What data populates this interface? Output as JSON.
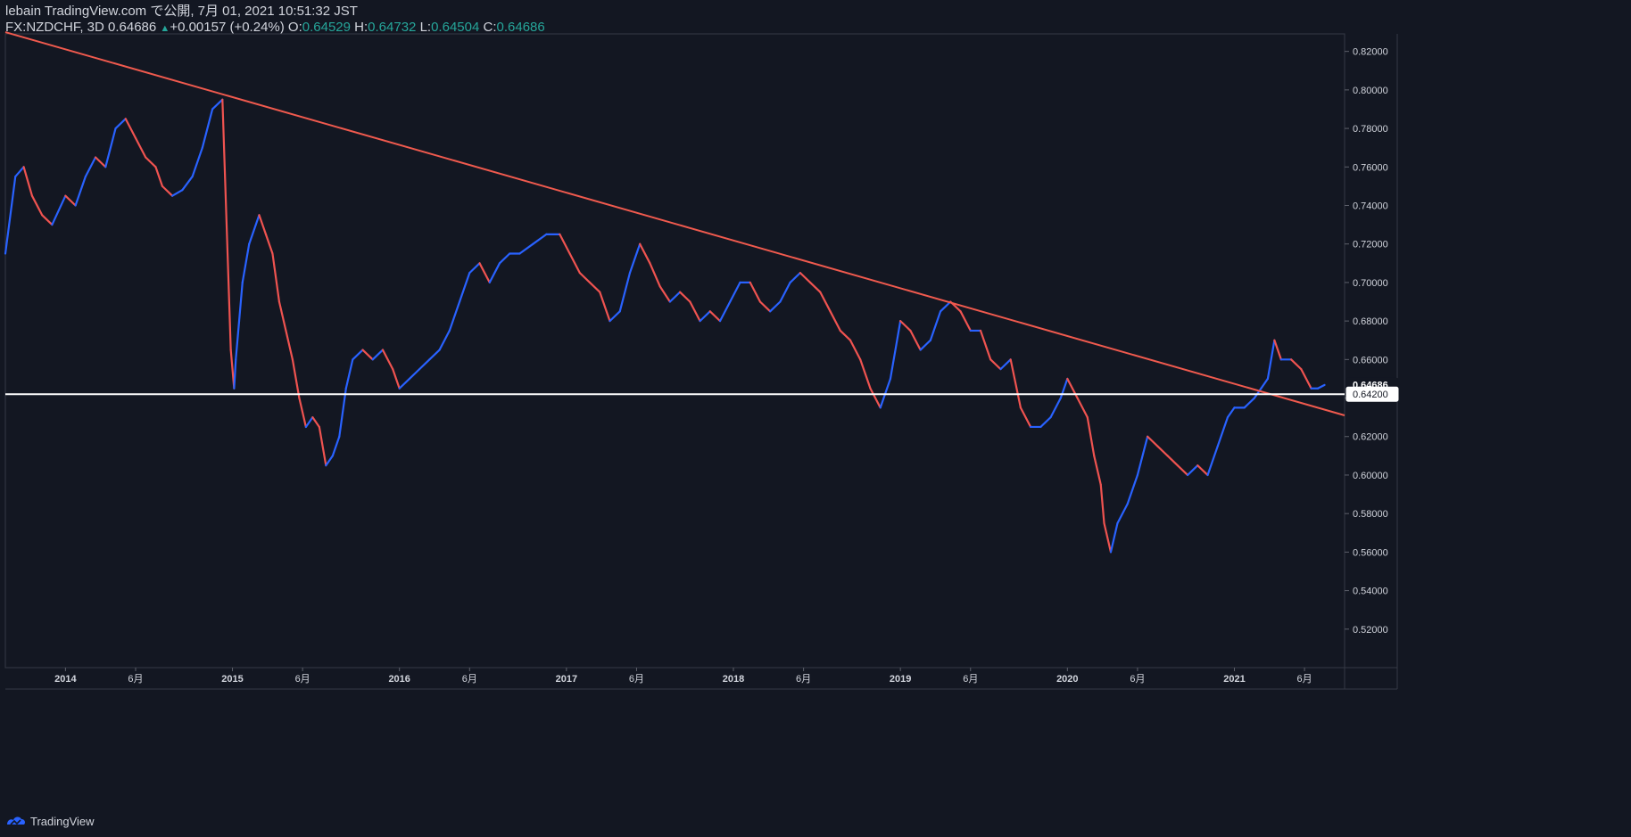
{
  "header": {
    "line1": "lebain TradingView.com で公開, 7月 01, 2021 10:51:32 JST",
    "symbol": "FX:NZDCHF, 3D",
    "last": "0.64686",
    "change": "+0.00157 (+0.24%)",
    "o_label": "O:",
    "o_value": "0.64529",
    "h_label": "H:",
    "h_value": "0.64732",
    "l_label": "L:",
    "l_value": "0.64504",
    "c_label": "C:",
    "c_value": "0.64686"
  },
  "footer": {
    "brand": "TradingView"
  },
  "colors": {
    "background": "#131722",
    "bull": "#2962ff",
    "bear": "#ef5350",
    "trendline": "#f05a4e",
    "support": "#ffffff",
    "grid_text": "#d1d4dc"
  },
  "chart_data": {
    "type": "line",
    "title": "",
    "xlabel": "",
    "ylabel": "",
    "y_axis_position": "right",
    "ylim": [
      0.505,
      0.83
    ],
    "y_ticks": [
      "0.82000",
      "0.80000",
      "0.78000",
      "0.76000",
      "0.74000",
      "0.72000",
      "0.70000",
      "0.68000",
      "0.66000",
      "0.64000",
      "0.62000",
      "0.60000",
      "0.58000",
      "0.56000",
      "0.54000",
      "0.52000"
    ],
    "y_tick_values": [
      0.82,
      0.8,
      0.78,
      0.76,
      0.74,
      0.72,
      0.7,
      0.68,
      0.66,
      0.64,
      0.62,
      0.6,
      0.58,
      0.56,
      0.54,
      0.52
    ],
    "xlim": [
      2013.64,
      2021.66
    ],
    "x_ticks": [
      {
        "label": "2014",
        "value": 2014.0
      },
      {
        "label": "6月",
        "value": 2014.42
      },
      {
        "label": "2015",
        "value": 2015.0
      },
      {
        "label": "6月",
        "value": 2015.42
      },
      {
        "label": "2016",
        "value": 2016.0
      },
      {
        "label": "6月",
        "value": 2016.42
      },
      {
        "label": "2017",
        "value": 2017.0
      },
      {
        "label": "6月",
        "value": 2017.42
      },
      {
        "label": "2018",
        "value": 2018.0
      },
      {
        "label": "6月",
        "value": 2018.42
      },
      {
        "label": "2019",
        "value": 2019.0
      },
      {
        "label": "6月",
        "value": 2019.42
      },
      {
        "label": "2020",
        "value": 2020.0
      },
      {
        "label": "6月",
        "value": 2020.42
      },
      {
        "label": "2021",
        "value": 2021.0
      },
      {
        "label": "6月",
        "value": 2021.42
      }
    ],
    "grid": false,
    "series": [
      {
        "kind": "close-line",
        "x": [
          2013.64,
          2013.7,
          2013.75,
          2013.8,
          2013.86,
          2013.92,
          2014.0,
          2014.06,
          2014.12,
          2014.18,
          2014.24,
          2014.3,
          2014.36,
          2014.42,
          2014.48,
          2014.54,
          2014.58,
          2014.64,
          2014.7,
          2014.76,
          2014.82,
          2014.88,
          2014.94,
          2014.99,
          2015.01,
          2015.02,
          2015.04,
          2015.06,
          2015.1,
          2015.16,
          2015.2,
          2015.24,
          2015.28,
          2015.32,
          2015.36,
          2015.4,
          2015.44,
          2015.48,
          2015.52,
          2015.56,
          2015.6,
          2015.64,
          2015.68,
          2015.72,
          2015.78,
          2015.84,
          2015.9,
          2015.96,
          2016.0,
          2016.06,
          2016.12,
          2016.18,
          2016.24,
          2016.3,
          2016.36,
          2016.42,
          2016.48,
          2016.54,
          2016.6,
          2016.66,
          2016.72,
          2016.8,
          2016.88,
          2016.96,
          2017.02,
          2017.08,
          2017.14,
          2017.2,
          2017.26,
          2017.32,
          2017.38,
          2017.44,
          2017.5,
          2017.56,
          2017.62,
          2017.68,
          2017.74,
          2017.8,
          2017.86,
          2017.92,
          2017.98,
          2018.04,
          2018.1,
          2018.16,
          2018.22,
          2018.28,
          2018.34,
          2018.4,
          2018.46,
          2018.52,
          2018.58,
          2018.64,
          2018.7,
          2018.76,
          2018.82,
          2018.88,
          2018.94,
          2019.0,
          2019.06,
          2019.12,
          2019.18,
          2019.24,
          2019.3,
          2019.36,
          2019.42,
          2019.48,
          2019.54,
          2019.6,
          2019.66,
          2019.72,
          2019.78,
          2019.84,
          2019.9,
          2019.96,
          2020.0,
          2020.06,
          2020.12,
          2020.16,
          2020.2,
          2020.22,
          2020.26,
          2020.3,
          2020.36,
          2020.42,
          2020.48,
          2020.54,
          2020.6,
          2020.66,
          2020.72,
          2020.78,
          2020.84,
          2020.9,
          2020.96,
          2021.0,
          2021.06,
          2021.12,
          2021.16,
          2021.2,
          2021.24,
          2021.28,
          2021.34,
          2021.4,
          2021.46,
          2021.5,
          2021.54
        ],
        "y": [
          0.715,
          0.755,
          0.76,
          0.745,
          0.735,
          0.73,
          0.745,
          0.74,
          0.755,
          0.765,
          0.76,
          0.78,
          0.785,
          0.775,
          0.765,
          0.76,
          0.75,
          0.745,
          0.748,
          0.755,
          0.77,
          0.79,
          0.795,
          0.665,
          0.645,
          0.66,
          0.68,
          0.7,
          0.72,
          0.735,
          0.725,
          0.715,
          0.69,
          0.675,
          0.66,
          0.64,
          0.625,
          0.63,
          0.625,
          0.605,
          0.61,
          0.62,
          0.645,
          0.66,
          0.665,
          0.66,
          0.665,
          0.655,
          0.645,
          0.65,
          0.655,
          0.66,
          0.665,
          0.675,
          0.69,
          0.705,
          0.71,
          0.7,
          0.71,
          0.715,
          0.715,
          0.72,
          0.725,
          0.725,
          0.715,
          0.705,
          0.7,
          0.695,
          0.68,
          0.685,
          0.705,
          0.72,
          0.71,
          0.698,
          0.69,
          0.695,
          0.69,
          0.68,
          0.685,
          0.68,
          0.69,
          0.7,
          0.7,
          0.69,
          0.685,
          0.69,
          0.7,
          0.705,
          0.7,
          0.695,
          0.685,
          0.675,
          0.67,
          0.66,
          0.645,
          0.635,
          0.65,
          0.68,
          0.675,
          0.665,
          0.67,
          0.685,
          0.69,
          0.685,
          0.675,
          0.675,
          0.66,
          0.655,
          0.66,
          0.635,
          0.625,
          0.625,
          0.63,
          0.64,
          0.65,
          0.64,
          0.63,
          0.61,
          0.595,
          0.575,
          0.56,
          0.575,
          0.585,
          0.6,
          0.62,
          0.615,
          0.61,
          0.605,
          0.6,
          0.605,
          0.6,
          0.615,
          0.63,
          0.635,
          0.635,
          0.64,
          0.645,
          0.65,
          0.67,
          0.66,
          0.66,
          0.655,
          0.645,
          0.645,
          0.6468
        ]
      }
    ],
    "annotations": [
      {
        "kind": "trendline",
        "x": [
          2013.64,
          2021.66
        ],
        "y": [
          0.83,
          0.631
        ]
      },
      {
        "kind": "horizontal-line",
        "y": 0.642
      },
      {
        "kind": "price-label",
        "y": 0.64686,
        "text": "0.64686"
      },
      {
        "kind": "price-label",
        "y": 0.642,
        "text": "0.64200"
      }
    ]
  }
}
